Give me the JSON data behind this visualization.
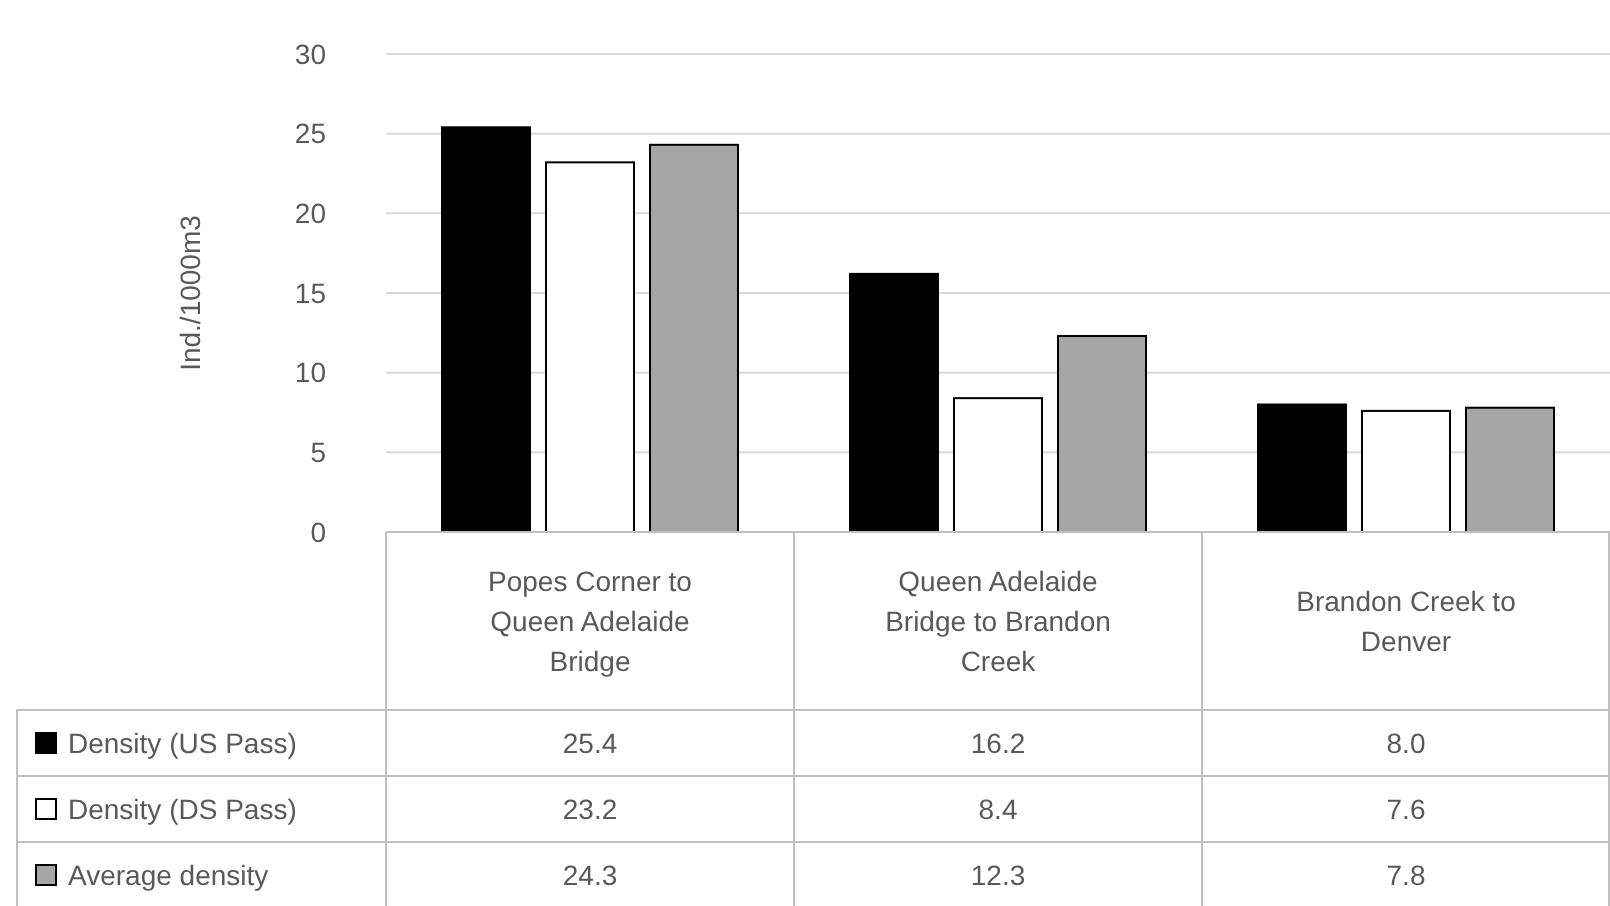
{
  "chart_data": {
    "type": "bar",
    "ylabel": "Ind./1000m3",
    "categories": [
      "Popes Corner to Queen Adelaide Bridge",
      "Queen Adelaide Bridge to Brandon Creek",
      "Brandon Creek to Denver"
    ],
    "series": [
      {
        "name": "Density (US Pass)",
        "color": "#000000",
        "values": [
          25.4,
          16.2,
          8.0
        ],
        "value_labels": [
          "25.4",
          "16.2",
          "8.0"
        ]
      },
      {
        "name": "Density (DS Pass)",
        "color": "#ffffff",
        "values": [
          23.2,
          8.4,
          7.6
        ],
        "value_labels": [
          "23.2",
          "8.4",
          "7.6"
        ]
      },
      {
        "name": "Average density",
        "color": "#a6a6a6",
        "values": [
          24.3,
          12.3,
          7.8
        ],
        "value_labels": [
          "24.3",
          "12.3",
          "7.8"
        ]
      }
    ],
    "ylim": [
      0,
      30
    ],
    "yticks": [
      0,
      5,
      10,
      15,
      20,
      25,
      30
    ],
    "grid": "y",
    "legend": "bottom"
  }
}
